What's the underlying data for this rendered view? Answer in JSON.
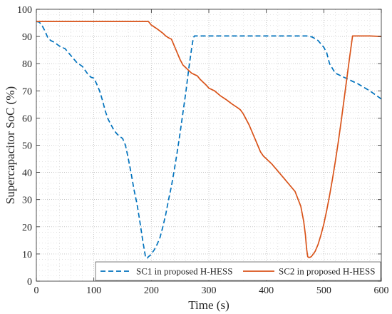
{
  "chart_data": {
    "type": "line",
    "title": "",
    "xlabel": "Time (s)",
    "ylabel": "Supercapacitor SoC (%)",
    "xlim": [
      0,
      600
    ],
    "ylim": [
      0,
      100
    ],
    "xticks": [
      0,
      100,
      200,
      300,
      400,
      500,
      600
    ],
    "yticks": [
      0,
      10,
      20,
      30,
      40,
      50,
      60,
      70,
      80,
      90,
      100
    ],
    "grid": true,
    "grid_style": "dotted-major-and-minor",
    "legend_position": "bottom-right",
    "series": [
      {
        "name": "SC1 in proposed H-HESS",
        "color": "#0072BD",
        "line_style": "dashed",
        "x": [
          0,
          5,
          10,
          15,
          20,
          25,
          30,
          40,
          50,
          60,
          70,
          80,
          90,
          95,
          100,
          105,
          110,
          115,
          120,
          125,
          130,
          135,
          140,
          145,
          150,
          155,
          160,
          165,
          170,
          175,
          180,
          185,
          190,
          193,
          195,
          198,
          200,
          205,
          210,
          215,
          220,
          225,
          230,
          235,
          240,
          245,
          250,
          255,
          260,
          265,
          270,
          273,
          275,
          300,
          350,
          400,
          460,
          470,
          480,
          490,
          500,
          505,
          510,
          520,
          540,
          560,
          580,
          600
        ],
        "y": [
          95.5,
          95.3,
          94,
          92,
          89.5,
          88.5,
          88,
          86.5,
          85.5,
          83,
          80.5,
          79,
          76,
          75,
          74.7,
          72.5,
          70,
          66.5,
          62.5,
          59.5,
          57.5,
          55.5,
          54.2,
          53.2,
          52.5,
          50,
          45,
          39.5,
          33.5,
          28.5,
          22,
          15,
          8.7,
          8.5,
          9,
          9.5,
          10,
          11.5,
          13.5,
          16,
          20,
          24.5,
          30,
          35,
          41,
          47.5,
          54.5,
          62,
          69.5,
          78,
          85.5,
          89.5,
          90.2,
          90.2,
          90.2,
          90.2,
          90.2,
          90.2,
          89.8,
          88.5,
          86,
          84,
          80,
          76.5,
          74.5,
          72.5,
          70,
          67
        ]
      },
      {
        "name": "SC2 in proposed H-HESS",
        "color": "#D95319",
        "line_style": "solid",
        "x": [
          0,
          50,
          100,
          150,
          190,
          195,
          200,
          205,
          210,
          215,
          220,
          225,
          230,
          235,
          240,
          245,
          250,
          255,
          260,
          265,
          270,
          275,
          280,
          285,
          290,
          295,
          300,
          310,
          320,
          330,
          340,
          350,
          355,
          360,
          365,
          370,
          375,
          380,
          385,
          390,
          395,
          400,
          410,
          420,
          430,
          440,
          450,
          460,
          465,
          468,
          470,
          472,
          474,
          476,
          478,
          480,
          485,
          490,
          495,
          500,
          505,
          510,
          515,
          520,
          525,
          530,
          535,
          540,
          545,
          550,
          555,
          560,
          580,
          600
        ],
        "y": [
          95.5,
          95.5,
          95.5,
          95.5,
          95.5,
          95.5,
          94.2,
          93.5,
          92.8,
          92,
          91.2,
          90.2,
          89.5,
          89,
          86.5,
          84,
          81.5,
          79.5,
          78.5,
          77.5,
          76.5,
          76,
          75.5,
          74.2,
          73.2,
          72.2,
          71,
          70,
          68.2,
          66.8,
          65.2,
          63.8,
          63,
          61.5,
          59.5,
          57.5,
          55,
          52.5,
          50,
          47.5,
          46,
          45,
          43,
          40.5,
          38,
          35.5,
          33,
          27.5,
          22,
          17,
          12,
          9,
          8.7,
          8.8,
          9,
          9.5,
          11,
          13.5,
          17,
          21,
          26,
          31.5,
          37.5,
          44,
          51,
          58.5,
          66.5,
          74.5,
          82.5,
          90.2,
          90.2,
          90.2,
          90.2,
          90
        ]
      }
    ]
  }
}
